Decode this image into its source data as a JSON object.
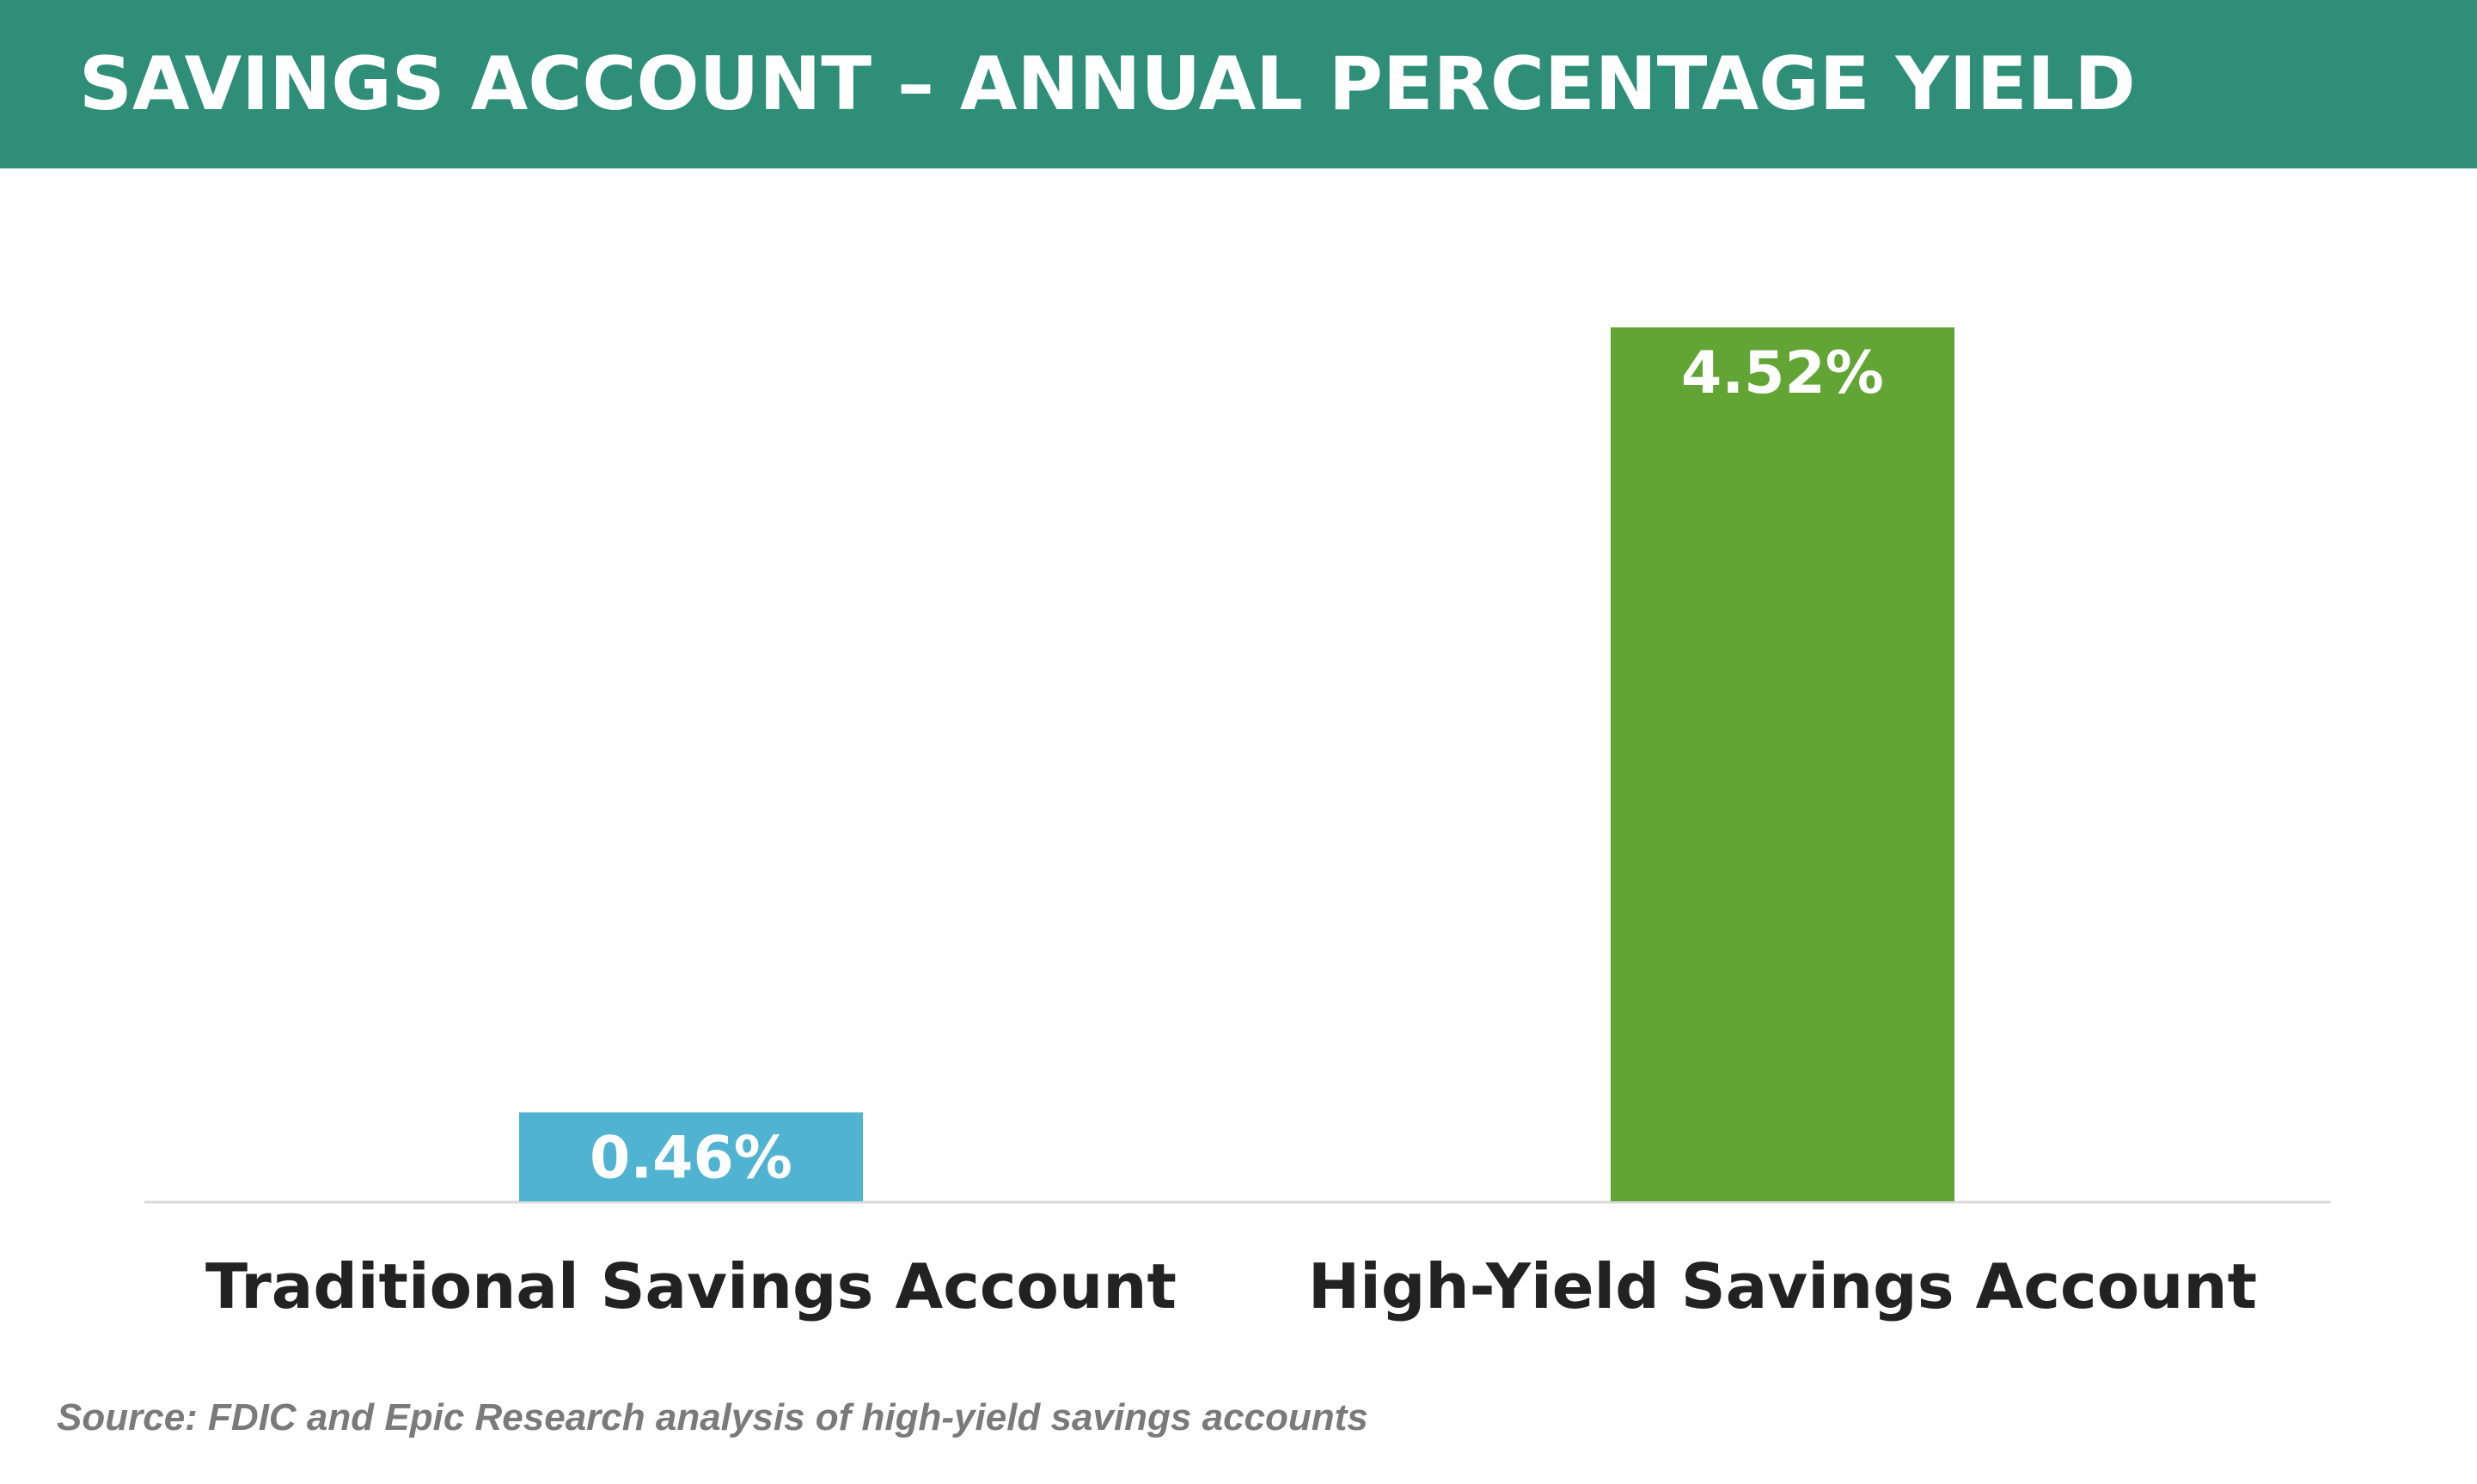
{
  "chart_data": {
    "type": "bar",
    "title": "SAVINGS ACCOUNT – ANNUAL PERCENTAGE YIELD",
    "categories": [
      "Traditional Savings Account",
      "High-Yield Savings Account"
    ],
    "values": [
      0.46,
      4.52
    ],
    "value_labels": [
      "0.46%",
      "4.52%"
    ],
    "colors": [
      "#4fb3d1",
      "#63a535"
    ],
    "xlabel": "",
    "ylabel": "",
    "ylim": [
      0,
      4.52
    ],
    "grid": false,
    "legend": "none"
  },
  "title_banner_color": "#2e8e78",
  "source": "Source: FDIC and Epic Research analysis of high-yield savings accounts"
}
